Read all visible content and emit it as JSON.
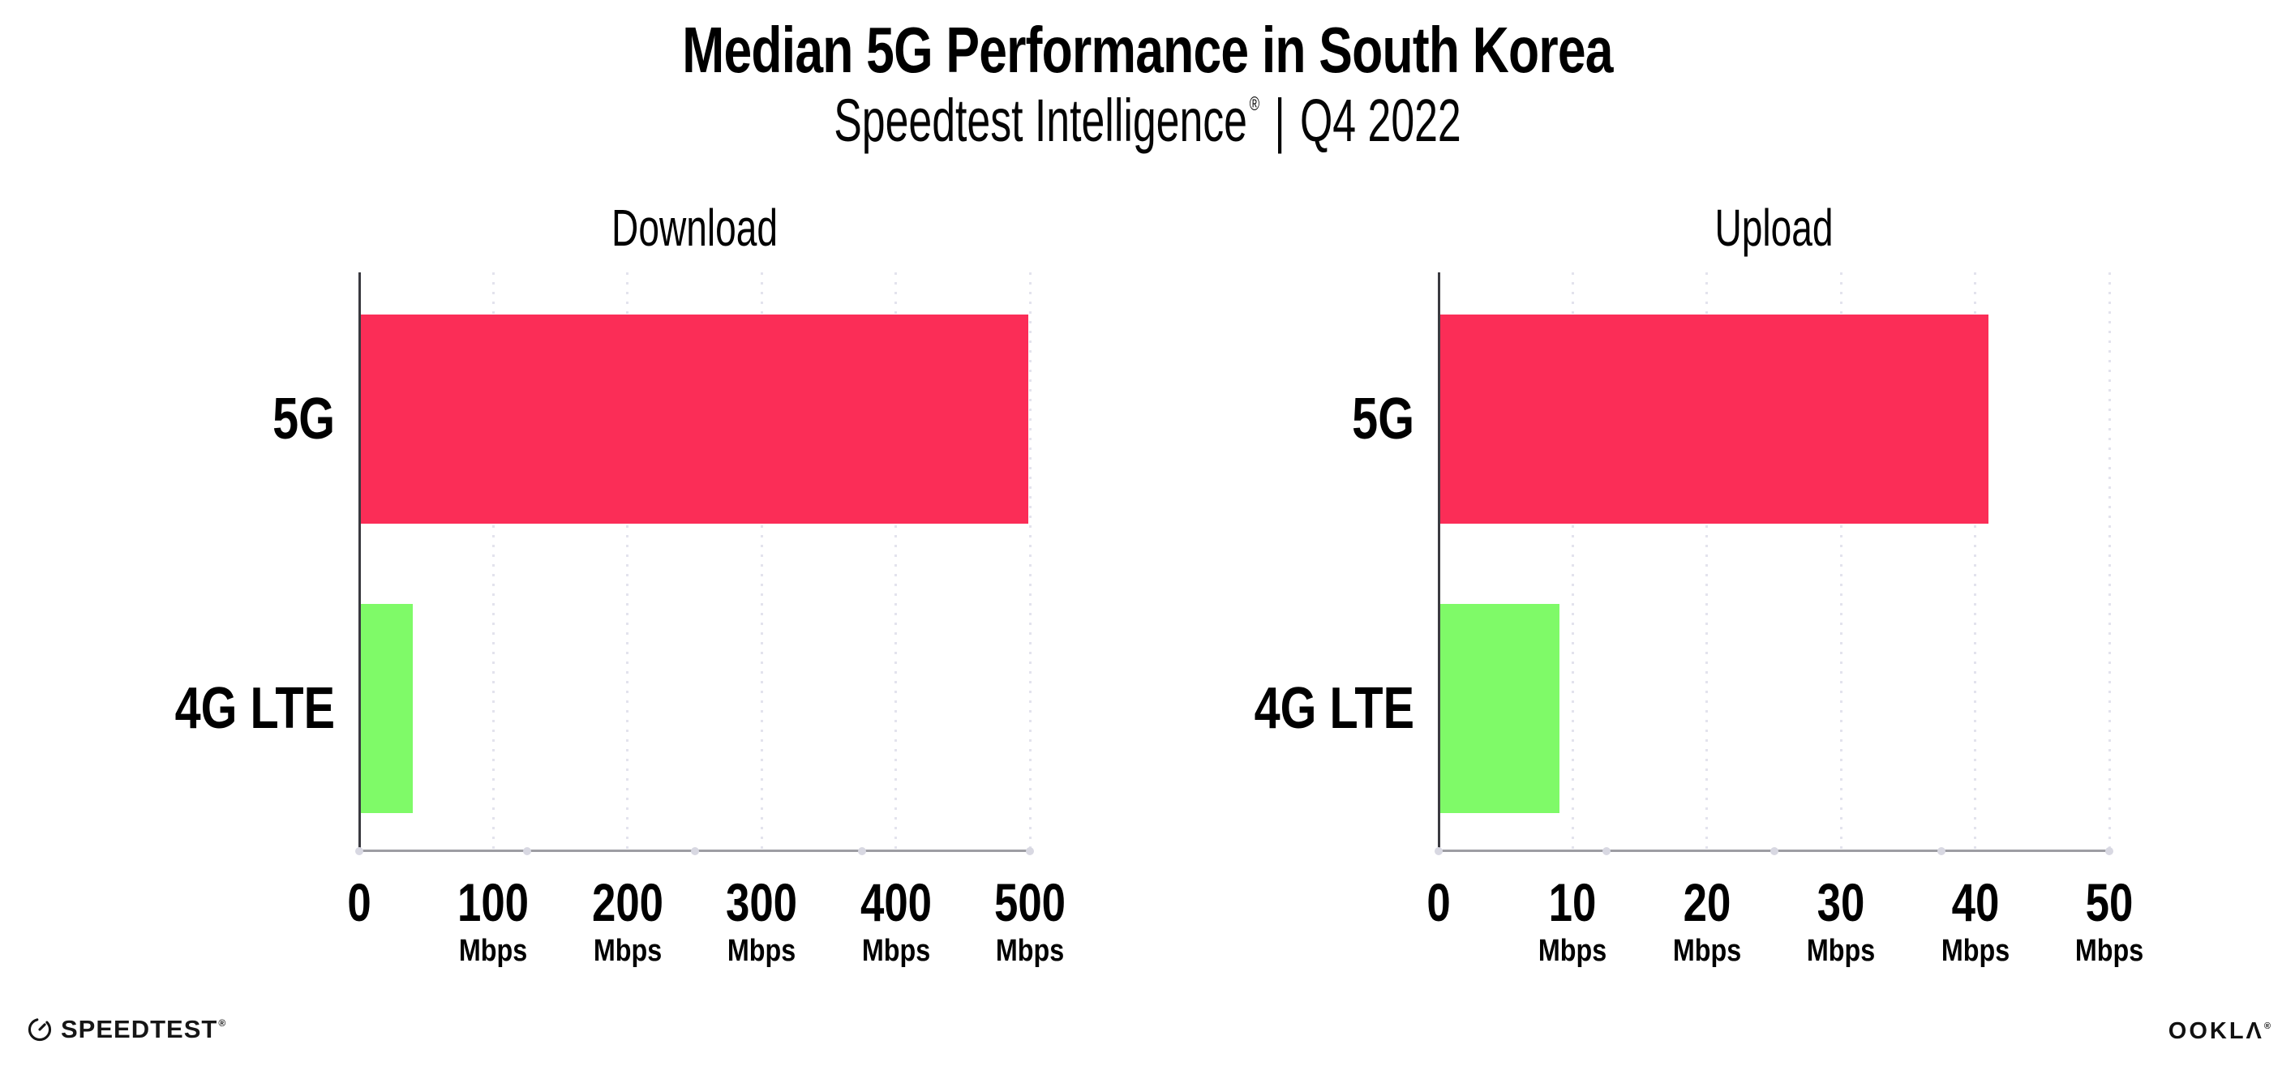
{
  "title": "Median 5G Performance in South Korea",
  "subtitle": {
    "brand": "Speedtest Intelligence",
    "registered": "®",
    "separator": "|",
    "period": "Q4 2022"
  },
  "colors": {
    "bar_5g": "#FB2D57",
    "bar_4g_lte": "#7FFA68",
    "gridline": "#E3E3ED",
    "y_axis": "#3A3A40",
    "x_axis": "#9D9DA3",
    "axis_dot": "#D8D8E2",
    "text": "#000000"
  },
  "chart_data": [
    {
      "type": "bar",
      "orientation": "horizontal",
      "title": "Download",
      "categories": [
        "5G",
        "4G LTE"
      ],
      "values": [
        499,
        40
      ],
      "unit": "Mbps",
      "xlim": [
        0,
        500
      ],
      "x_ticks": [
        0,
        100,
        200,
        300,
        400,
        500
      ],
      "tick_unit_label": "Mbps",
      "grid": "dotted-vertical",
      "legend": "none",
      "bar_colors": [
        "#FB2D57",
        "#7FFA68"
      ]
    },
    {
      "type": "bar",
      "orientation": "horizontal",
      "title": "Upload",
      "categories": [
        "5G",
        "4G LTE"
      ],
      "values": [
        41,
        9
      ],
      "unit": "Mbps",
      "xlim": [
        0,
        50
      ],
      "x_ticks": [
        0,
        10,
        20,
        30,
        40,
        50
      ],
      "tick_unit_label": "Mbps",
      "grid": "dotted-vertical",
      "legend": "none",
      "bar_colors": [
        "#FB2D57",
        "#7FFA68"
      ]
    }
  ],
  "branding": {
    "speedtest_wordmark": "SPEEDTEST",
    "speedtest_registered": "®",
    "ookla_wordmark": "OOKLΛ",
    "ookla_registered": "®"
  }
}
